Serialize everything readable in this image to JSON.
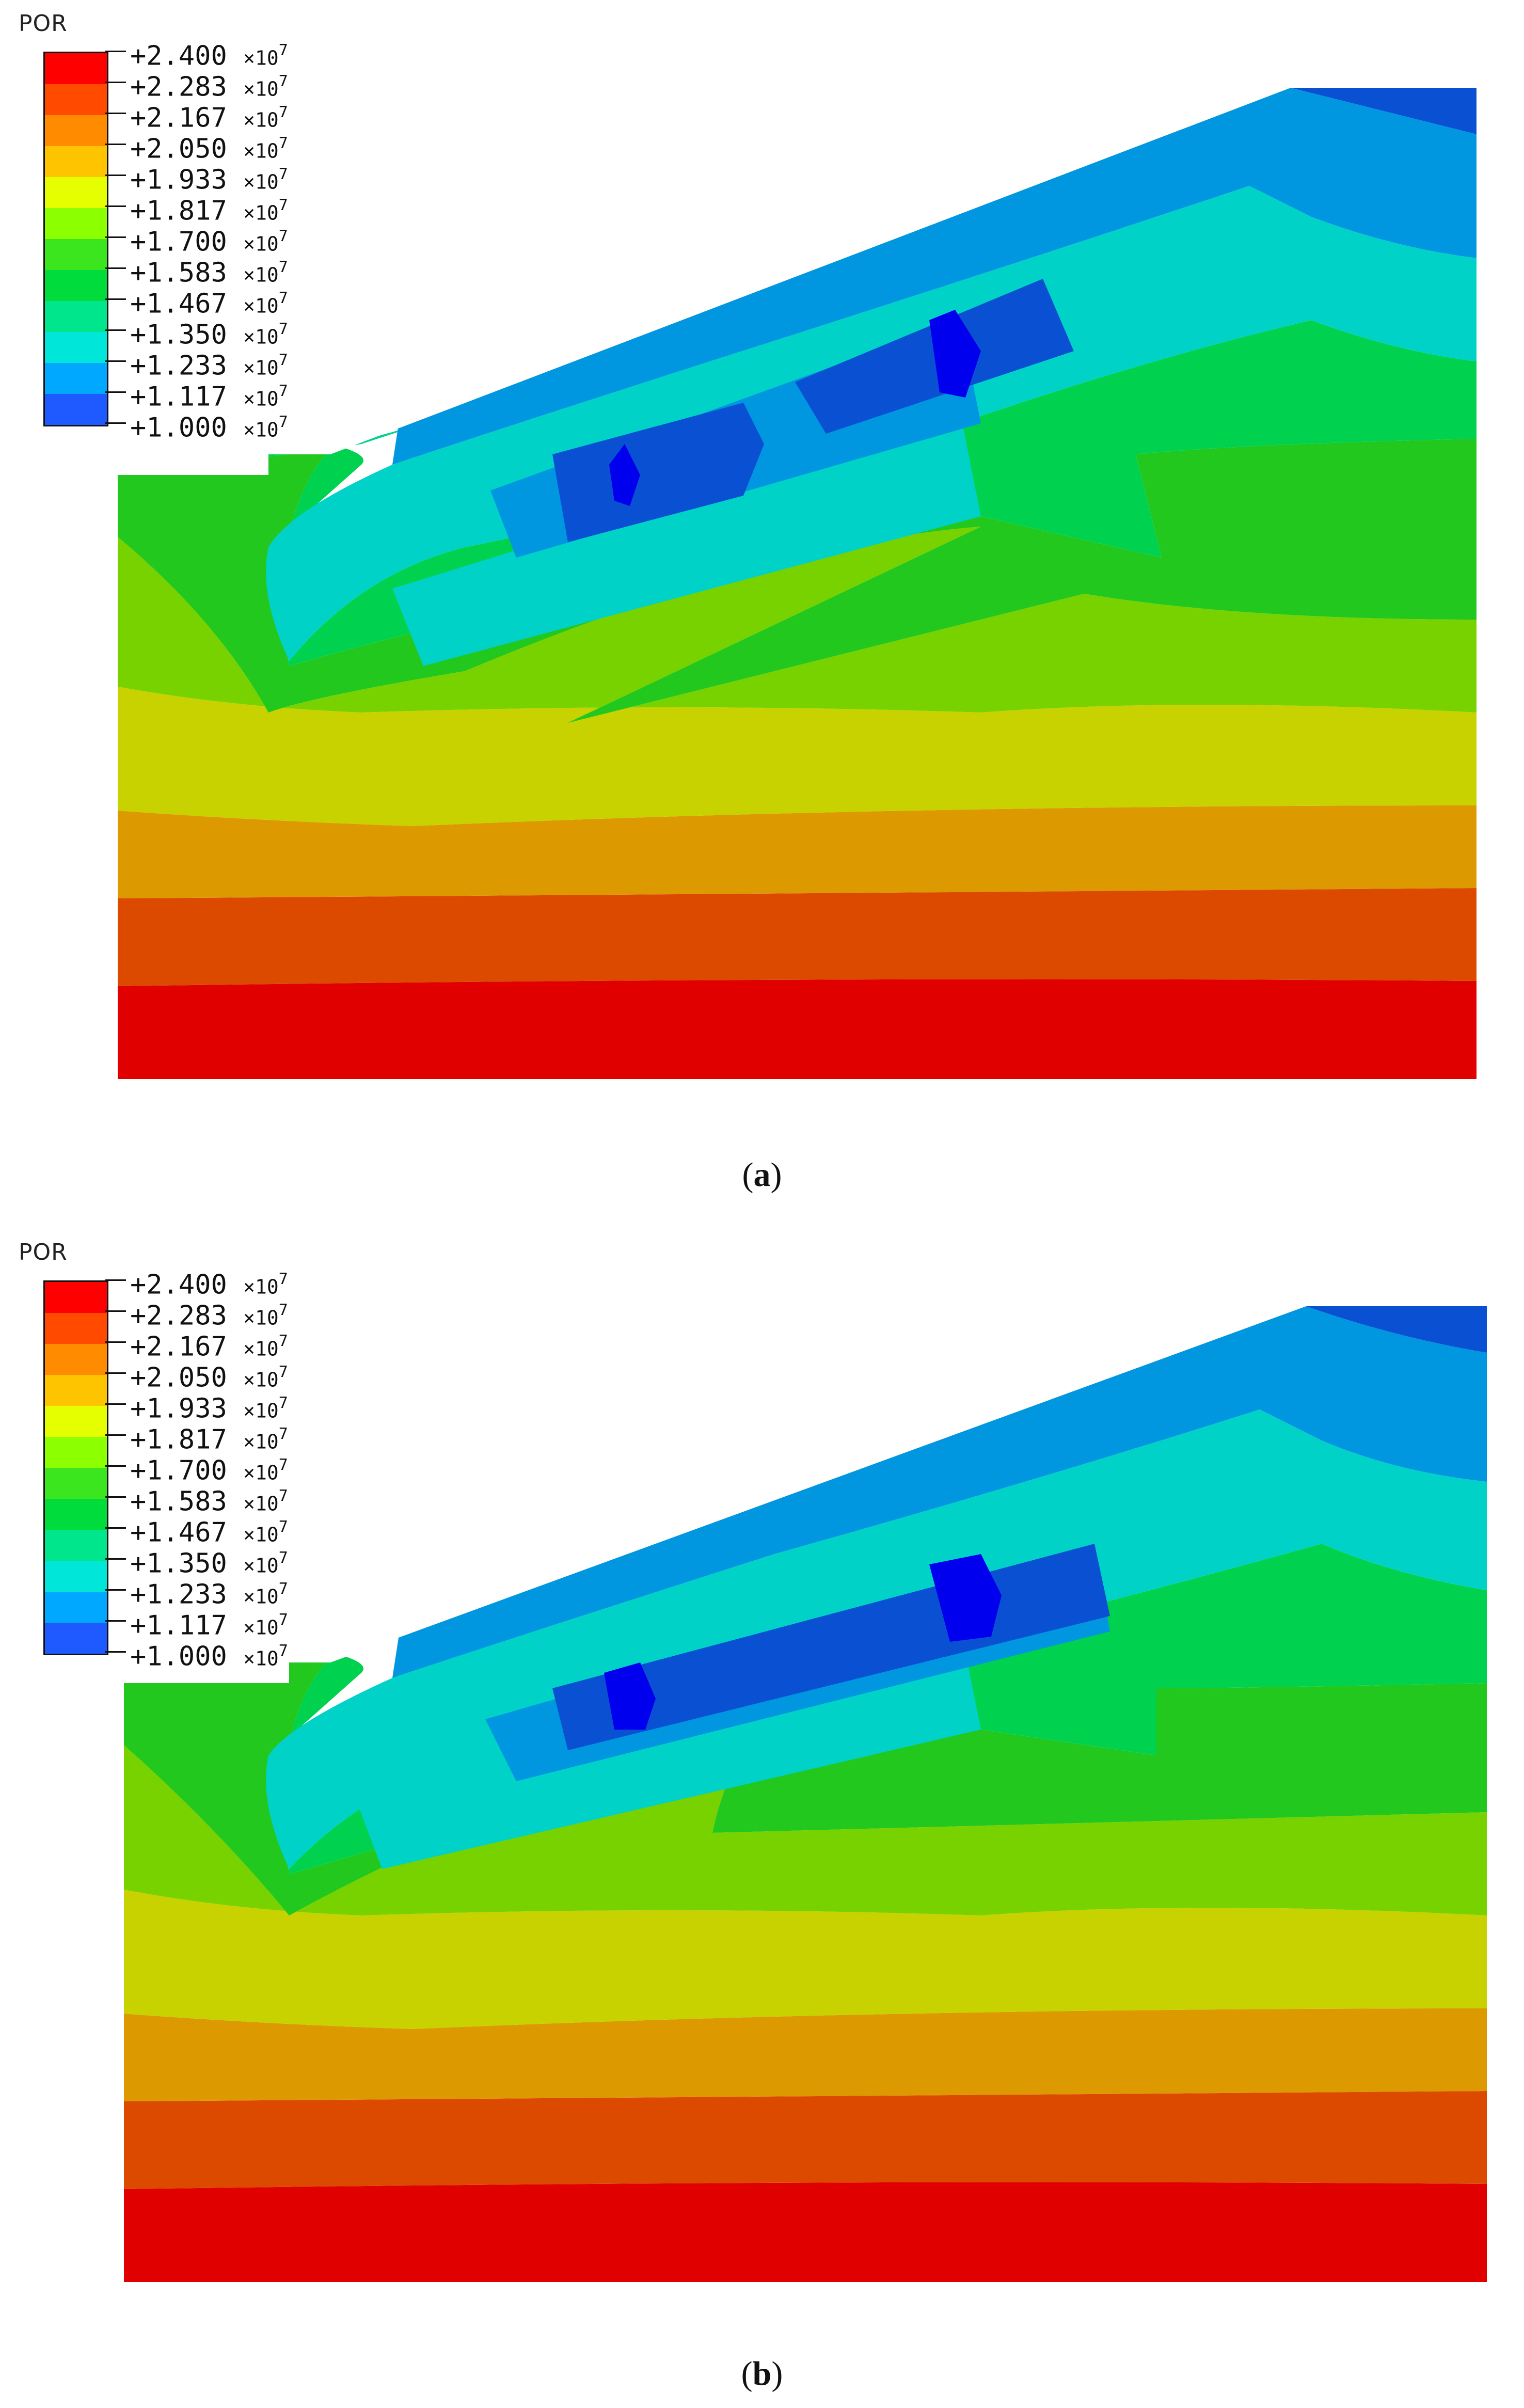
{
  "figure": {
    "variable": "POR",
    "legend": {
      "exponent_label": "×10",
      "exponent_power": "7",
      "levels": [
        {
          "label": "+2.400",
          "color": "#ff0000"
        },
        {
          "label": "+2.283",
          "color": "#ff4a00"
        },
        {
          "label": "+2.167",
          "color": "#ff8c00"
        },
        {
          "label": "+2.050",
          "color": "#ffc400"
        },
        {
          "label": "+1.933",
          "color": "#e6ff00"
        },
        {
          "label": "+1.817",
          "color": "#8cff00"
        },
        {
          "label": "+1.700",
          "color": "#3ce61e"
        },
        {
          "label": "+1.583",
          "color": "#00dc3c"
        },
        {
          "label": "+1.467",
          "color": "#00e68c"
        },
        {
          "label": "+1.350",
          "color": "#00e6d8"
        },
        {
          "label": "+1.233",
          "color": "#00a8ff"
        },
        {
          "label": "+1.117",
          "color": "#1e5aff"
        },
        {
          "label": "+1.000",
          "color": "#0000ff"
        }
      ]
    },
    "panels": [
      {
        "id": "a",
        "caption_open": "(",
        "caption_letter": "a",
        "caption_close": ")"
      },
      {
        "id": "b",
        "caption_open": "(",
        "caption_letter": "b",
        "caption_close": ")"
      }
    ]
  }
}
